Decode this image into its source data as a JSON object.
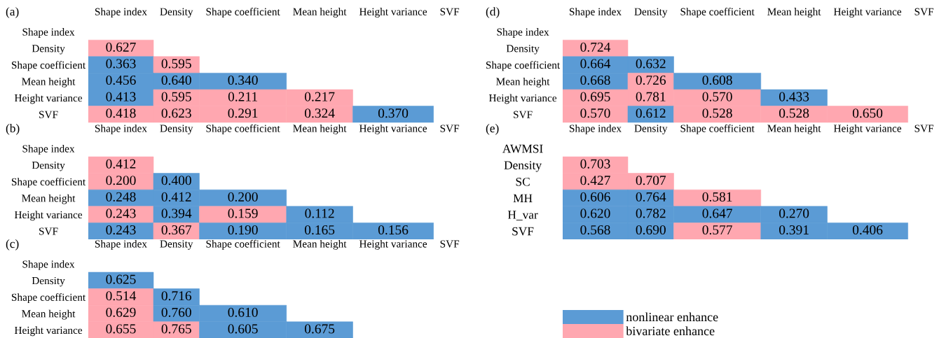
{
  "chart_data": [
    {
      "type": "heatmap",
      "title": "(a)",
      "categories": [
        "Shape index",
        "Density",
        "Shape coefficient",
        "Mean height",
        "Height variance",
        "SVF"
      ],
      "y_categories": [
        "Shape index",
        "Density",
        "Shape coefficient",
        "Mean height",
        "Height variance",
        "SVF"
      ],
      "cells": [
        [
          null,
          null,
          null,
          null,
          null,
          null
        ],
        [
          0.627,
          null,
          null,
          null,
          null,
          null
        ],
        [
          0.363,
          0.595,
          null,
          null,
          null,
          null
        ],
        [
          0.456,
          0.64,
          0.34,
          null,
          null,
          null
        ],
        [
          0.413,
          0.595,
          0.211,
          0.217,
          null,
          null
        ],
        [
          0.418,
          0.623,
          0.291,
          0.324,
          0.37,
          null
        ]
      ],
      "cell_labels": [
        [
          null,
          null,
          null,
          null,
          null,
          null
        ],
        [
          "0.627",
          null,
          null,
          null,
          null,
          null
        ],
        [
          "0.363",
          "0.595",
          null,
          null,
          null,
          null
        ],
        [
          "0.456",
          "0.640",
          "0.340",
          null,
          null,
          null
        ],
        [
          "0.413",
          "0.595",
          "0.211",
          "0.217",
          null,
          null
        ],
        [
          "0.418",
          "0.623",
          "0.291",
          "0.324",
          "0.370",
          null
        ]
      ],
      "colors": [
        [
          null,
          null,
          null,
          null,
          null,
          null
        ],
        [
          "#ffa7b0",
          null,
          null,
          null,
          null,
          null
        ],
        [
          "#5b9bd5",
          "#ffa7b0",
          null,
          null,
          null,
          null
        ],
        [
          "#5b9bd5",
          "#5b9bd5",
          "#5b9bd5",
          null,
          null,
          null
        ],
        [
          "#5b9bd5",
          "#ffa7b0",
          "#ffa7b0",
          "#ffa7b0",
          null,
          null
        ],
        [
          "#ffa7b0",
          "#ffa7b0",
          "#ffa7b0",
          "#ffa7b0",
          "#5b9bd5",
          null
        ]
      ]
    },
    {
      "type": "heatmap",
      "title": "(b)",
      "categories": [
        "Shape index",
        "Density",
        "Shape coefficient",
        "Mean height",
        "Height variance",
        "SVF"
      ],
      "y_categories": [
        "Shape index",
        "Density",
        "Shape coefficient",
        "Mean height",
        "Height variance",
        "SVF"
      ],
      "cells": [
        [
          null,
          null,
          null,
          null,
          null,
          null
        ],
        [
          0.412,
          null,
          null,
          null,
          null,
          null
        ],
        [
          0.2,
          0.4,
          null,
          null,
          null,
          null
        ],
        [
          0.248,
          0.412,
          0.2,
          null,
          null,
          null
        ],
        [
          0.243,
          0.394,
          0.159,
          0.112,
          null,
          null
        ],
        [
          0.243,
          0.367,
          0.19,
          0.165,
          0.156,
          null
        ]
      ],
      "cell_labels": [
        [
          null,
          null,
          null,
          null,
          null,
          null
        ],
        [
          "0.412",
          null,
          null,
          null,
          null,
          null
        ],
        [
          "0.200",
          "0.400",
          null,
          null,
          null,
          null
        ],
        [
          "0.248",
          "0.412",
          "0.200",
          null,
          null,
          null
        ],
        [
          "0.243",
          "0.394",
          "0.159",
          "0.112",
          null,
          null
        ],
        [
          "0.243",
          "0.367",
          "0.190",
          "0.165",
          "0.156",
          null
        ]
      ],
      "colors": [
        [
          null,
          null,
          null,
          null,
          null,
          null
        ],
        [
          "#ffa7b0",
          null,
          null,
          null,
          null,
          null
        ],
        [
          "#ffa7b0",
          "#5b9bd5",
          null,
          null,
          null,
          null
        ],
        [
          "#5b9bd5",
          "#5b9bd5",
          "#5b9bd5",
          null,
          null,
          null
        ],
        [
          "#ffa7b0",
          "#5b9bd5",
          "#ffa7b0",
          "#5b9bd5",
          null,
          null
        ],
        [
          "#5b9bd5",
          "#ffa7b0",
          "#5b9bd5",
          "#5b9bd5",
          "#5b9bd5",
          null
        ]
      ]
    },
    {
      "type": "heatmap",
      "title": "(c)",
      "categories": [
        "Shape index",
        "Density",
        "Shape coefficient",
        "Mean height",
        "Height variance",
        "SVF"
      ],
      "y_categories": [
        "Shape index",
        "Density",
        "Shape coefficient",
        "Mean height",
        "Height variance"
      ],
      "cells": [
        [
          null,
          null,
          null,
          null,
          null,
          null
        ],
        [
          0.625,
          null,
          null,
          null,
          null,
          null
        ],
        [
          0.514,
          0.716,
          null,
          null,
          null,
          null
        ],
        [
          0.629,
          0.76,
          0.61,
          null,
          null,
          null
        ],
        [
          0.655,
          0.765,
          0.605,
          0.675,
          null,
          null
        ]
      ],
      "cell_labels": [
        [
          null,
          null,
          null,
          null,
          null,
          null
        ],
        [
          "0.625",
          null,
          null,
          null,
          null,
          null
        ],
        [
          "0.514",
          "0.716",
          null,
          null,
          null,
          null
        ],
        [
          "0.629",
          "0.760",
          "0.610",
          null,
          null,
          null
        ],
        [
          "0.655",
          "0.765",
          "0.605",
          "0.675",
          null,
          null
        ]
      ],
      "colors": [
        [
          null,
          null,
          null,
          null,
          null,
          null
        ],
        [
          "#5b9bd5",
          null,
          null,
          null,
          null,
          null
        ],
        [
          "#ffa7b0",
          "#5b9bd5",
          null,
          null,
          null,
          null
        ],
        [
          "#ffa7b0",
          "#5b9bd5",
          "#5b9bd5",
          null,
          null,
          null
        ],
        [
          "#ffa7b0",
          "#ffa7b0",
          "#5b9bd5",
          "#5b9bd5",
          null,
          null
        ]
      ]
    },
    {
      "type": "heatmap",
      "title": "(d)",
      "categories": [
        "Shape index",
        "Density",
        "Shape coefficient",
        "Mean height",
        "Height variance",
        "SVF"
      ],
      "y_categories": [
        "Shape index",
        "Density",
        "Shape coefficient",
        "Mean height",
        "Height variance",
        "SVF"
      ],
      "cells": [
        [
          null,
          null,
          null,
          null,
          null,
          null
        ],
        [
          0.724,
          null,
          null,
          null,
          null,
          null
        ],
        [
          0.664,
          0.632,
          null,
          null,
          null,
          null
        ],
        [
          0.668,
          0.726,
          0.608,
          null,
          null,
          null
        ],
        [
          0.695,
          0.781,
          0.57,
          0.433,
          null,
          null
        ],
        [
          0.57,
          0.612,
          0.528,
          0.528,
          0.65,
          null
        ]
      ],
      "cell_labels": [
        [
          null,
          null,
          null,
          null,
          null,
          null
        ],
        [
          "0.724",
          null,
          null,
          null,
          null,
          null
        ],
        [
          "0.664",
          "0.632",
          null,
          null,
          null,
          null
        ],
        [
          "0.668",
          "0.726",
          "0.608",
          null,
          null,
          null
        ],
        [
          "0.695",
          "0.781",
          "0.570",
          "0.433",
          null,
          null
        ],
        [
          "0.570",
          "0.612",
          "0.528",
          "0.528",
          "0.650",
          null
        ]
      ],
      "colors": [
        [
          null,
          null,
          null,
          null,
          null,
          null
        ],
        [
          "#ffa7b0",
          null,
          null,
          null,
          null,
          null
        ],
        [
          "#5b9bd5",
          "#5b9bd5",
          null,
          null,
          null,
          null
        ],
        [
          "#5b9bd5",
          "#ffa7b0",
          "#5b9bd5",
          null,
          null,
          null
        ],
        [
          "#ffa7b0",
          "#ffa7b0",
          "#ffa7b0",
          "#5b9bd5",
          null,
          null
        ],
        [
          "#ffa7b0",
          "#5b9bd5",
          "#ffa7b0",
          "#ffa7b0",
          "#ffa7b0",
          null
        ]
      ]
    },
    {
      "type": "heatmap",
      "title": "(e)",
      "categories": [
        "Shape index",
        "Density",
        "Shape coefficient",
        "Mean height",
        "Height variance",
        "SVF"
      ],
      "y_categories": [
        "AWMSI",
        "Density",
        "SC",
        "MH",
        "H_var",
        "SVF"
      ],
      "cells": [
        [
          null,
          null,
          null,
          null,
          null,
          null
        ],
        [
          0.703,
          null,
          null,
          null,
          null,
          null
        ],
        [
          0.427,
          0.707,
          null,
          null,
          null,
          null
        ],
        [
          0.606,
          0.764,
          0.581,
          null,
          null,
          null
        ],
        [
          0.62,
          0.782,
          0.647,
          0.27,
          null,
          null
        ],
        [
          0.568,
          0.69,
          0.577,
          0.391,
          0.406,
          null
        ]
      ],
      "cell_labels": [
        [
          null,
          null,
          null,
          null,
          null,
          null
        ],
        [
          "0.703",
          null,
          null,
          null,
          null,
          null
        ],
        [
          "0.427",
          "0.707",
          null,
          null,
          null,
          null
        ],
        [
          "0.606",
          "0.764",
          "0.581",
          null,
          null,
          null
        ],
        [
          "0.620",
          "0.782",
          "0.647",
          "0.270",
          null,
          null
        ],
        [
          "0.568",
          "0.690",
          "0.577",
          "0.391",
          "0.406",
          null
        ]
      ],
      "colors": [
        [
          null,
          null,
          null,
          null,
          null,
          null
        ],
        [
          "#ffa7b0",
          null,
          null,
          null,
          null,
          null
        ],
        [
          "#ffa7b0",
          "#ffa7b0",
          null,
          null,
          null,
          null
        ],
        [
          "#5b9bd5",
          "#5b9bd5",
          "#ffa7b0",
          null,
          null,
          null
        ],
        [
          "#5b9bd5",
          "#5b9bd5",
          "#5b9bd5",
          "#5b9bd5",
          null,
          null
        ],
        [
          "#5b9bd5",
          "#5b9bd5",
          "#ffa7b0",
          "#5b9bd5",
          "#5b9bd5",
          null
        ]
      ]
    },
    {
      "type": "other",
      "series": [
        {
          "name": "nonlinear enhance",
          "color": "#5b9bd5"
        },
        {
          "name": "bivariate enhance",
          "color": "#ffa7b0"
        }
      ],
      "legend": "bottom"
    }
  ]
}
